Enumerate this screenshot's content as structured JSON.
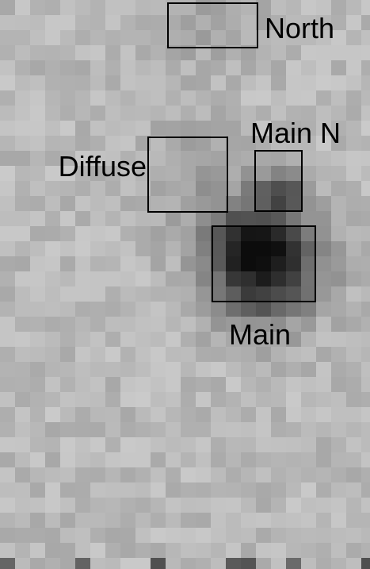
{
  "regions": [
    {
      "label": "North"
    },
    {
      "label": "Main N"
    },
    {
      "label": "Diffuse"
    },
    {
      "label": "Main"
    }
  ]
}
